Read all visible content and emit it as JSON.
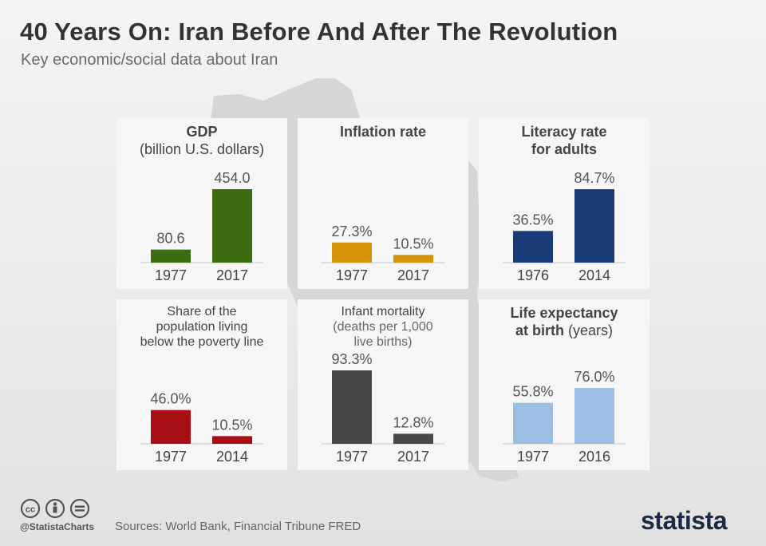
{
  "title": "40 Years On: Iran Before And After The Revolution",
  "subtitle": "Key economic/social data about Iran",
  "chart_data": [
    {
      "type": "bar",
      "title_lines": [
        "GDP"
      ],
      "title_bold": true,
      "subtitle_lines": [
        "(billion U.S. dollars)"
      ],
      "categories": [
        "1977",
        "2017"
      ],
      "values": [
        80.6,
        454.0
      ],
      "data_labels": [
        "80.6",
        "454.0"
      ],
      "color": "#3d6b10",
      "ylim": [
        0,
        454.0
      ]
    },
    {
      "type": "bar",
      "title_lines": [
        "Inflation rate"
      ],
      "title_bold": true,
      "subtitle_lines": [],
      "categories": [
        "1977",
        "2017"
      ],
      "values": [
        27.3,
        10.5
      ],
      "data_labels": [
        "27.3%",
        "10.5%"
      ],
      "color": "#d4930a",
      "ylim": [
        0,
        100
      ]
    },
    {
      "type": "bar",
      "title_lines": [
        "Literacy rate",
        "for adults"
      ],
      "title_bold": true,
      "subtitle_lines": [],
      "categories": [
        "1976",
        "2014"
      ],
      "values": [
        36.5,
        84.7
      ],
      "data_labels": [
        "36.5%",
        "84.7%"
      ],
      "color": "#1a3c78",
      "ylim": [
        0,
        84.7
      ]
    },
    {
      "type": "bar",
      "title_lines": [
        "Share of the",
        "population living",
        "below the poverty line"
      ],
      "title_bold": false,
      "subtitle_lines": [],
      "categories": [
        "1977",
        "2014"
      ],
      "values": [
        46.0,
        10.5
      ],
      "data_labels": [
        "46.0%",
        "10.5%"
      ],
      "color": "#a80f14",
      "ylim": [
        0,
        100
      ]
    },
    {
      "type": "bar",
      "title_lines": [
        "Infant mortality"
      ],
      "title_bold": false,
      "subtitle_lines": [
        "(deaths per 1,000",
        "live births)"
      ],
      "categories": [
        "1977",
        "2017"
      ],
      "values": [
        93.3,
        12.8
      ],
      "data_labels": [
        "93.3%",
        "12.8%"
      ],
      "color": "#484848",
      "ylim": [
        0,
        93.3
      ]
    },
    {
      "type": "bar",
      "title_lines": [
        "Life expectancy"
      ],
      "title_bold": true,
      "subtitle_lines": [],
      "mixed_line": {
        "bold": "at birth",
        "normal": " (years)"
      },
      "categories": [
        "1977",
        "2016"
      ],
      "values": [
        55.8,
        76.0
      ],
      "data_labels": [
        "55.8%",
        "76.0%"
      ],
      "color": "#9bbfe2",
      "ylim": [
        0,
        100
      ]
    }
  ],
  "footer": {
    "handle": "@StatistaCharts",
    "sources": "Sources: World Bank, Financial Tribune FRED",
    "brand": "statista",
    "icon_names": [
      "cc-icon",
      "by-icon",
      "nd-icon"
    ]
  }
}
